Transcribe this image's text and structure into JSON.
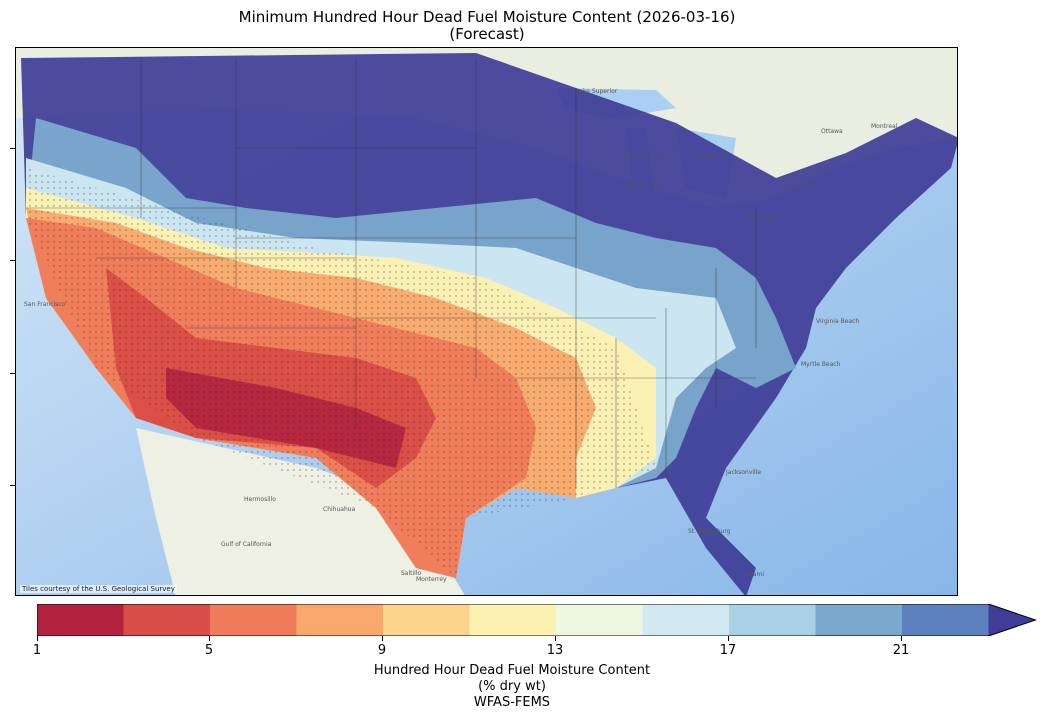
{
  "title_line1": "Minimum Hundred Hour Dead Fuel Moisture Content (2026-03-16)",
  "title_line2": "(Forecast)",
  "attribution": "Tiles courtesy of the U.S. Geological Survey",
  "colorbar": {
    "ticks": [
      "1",
      "5",
      "9",
      "13",
      "17",
      "21"
    ],
    "label_line1": "Hundred Hour Dead Fuel Moisture Content",
    "label_line2": "(% dry wt)",
    "label_line3": "WFAS-FEMS",
    "colors": [
      "#b2223f",
      "#d94d47",
      "#ef7b5a",
      "#f8a86b",
      "#fcd38c",
      "#fdf1b0",
      "#eef7e2",
      "#d1eaf2",
      "#a9d0e3",
      "#7ba9cd",
      "#5c7fbd",
      "#3f3d97"
    ],
    "extend": "max"
  },
  "map_labels": [
    "Lake Superior",
    "Lake Michigan",
    "Lake Huron",
    "Lake Erie",
    "Lake Ontario",
    "Milwaukee",
    "Ottawa",
    "Montreal",
    "Hermosillo",
    "Chihuahua",
    "Monterrey",
    "Gulf of California",
    "Jacksonville",
    "St. Petersburg",
    "Miami",
    "Virginia Beach",
    "San Francisco",
    "Myrtle Beach",
    "Saltillo"
  ],
  "colors": {
    "ocean": "#cfe3f7",
    "land": "#eef0e6"
  }
}
